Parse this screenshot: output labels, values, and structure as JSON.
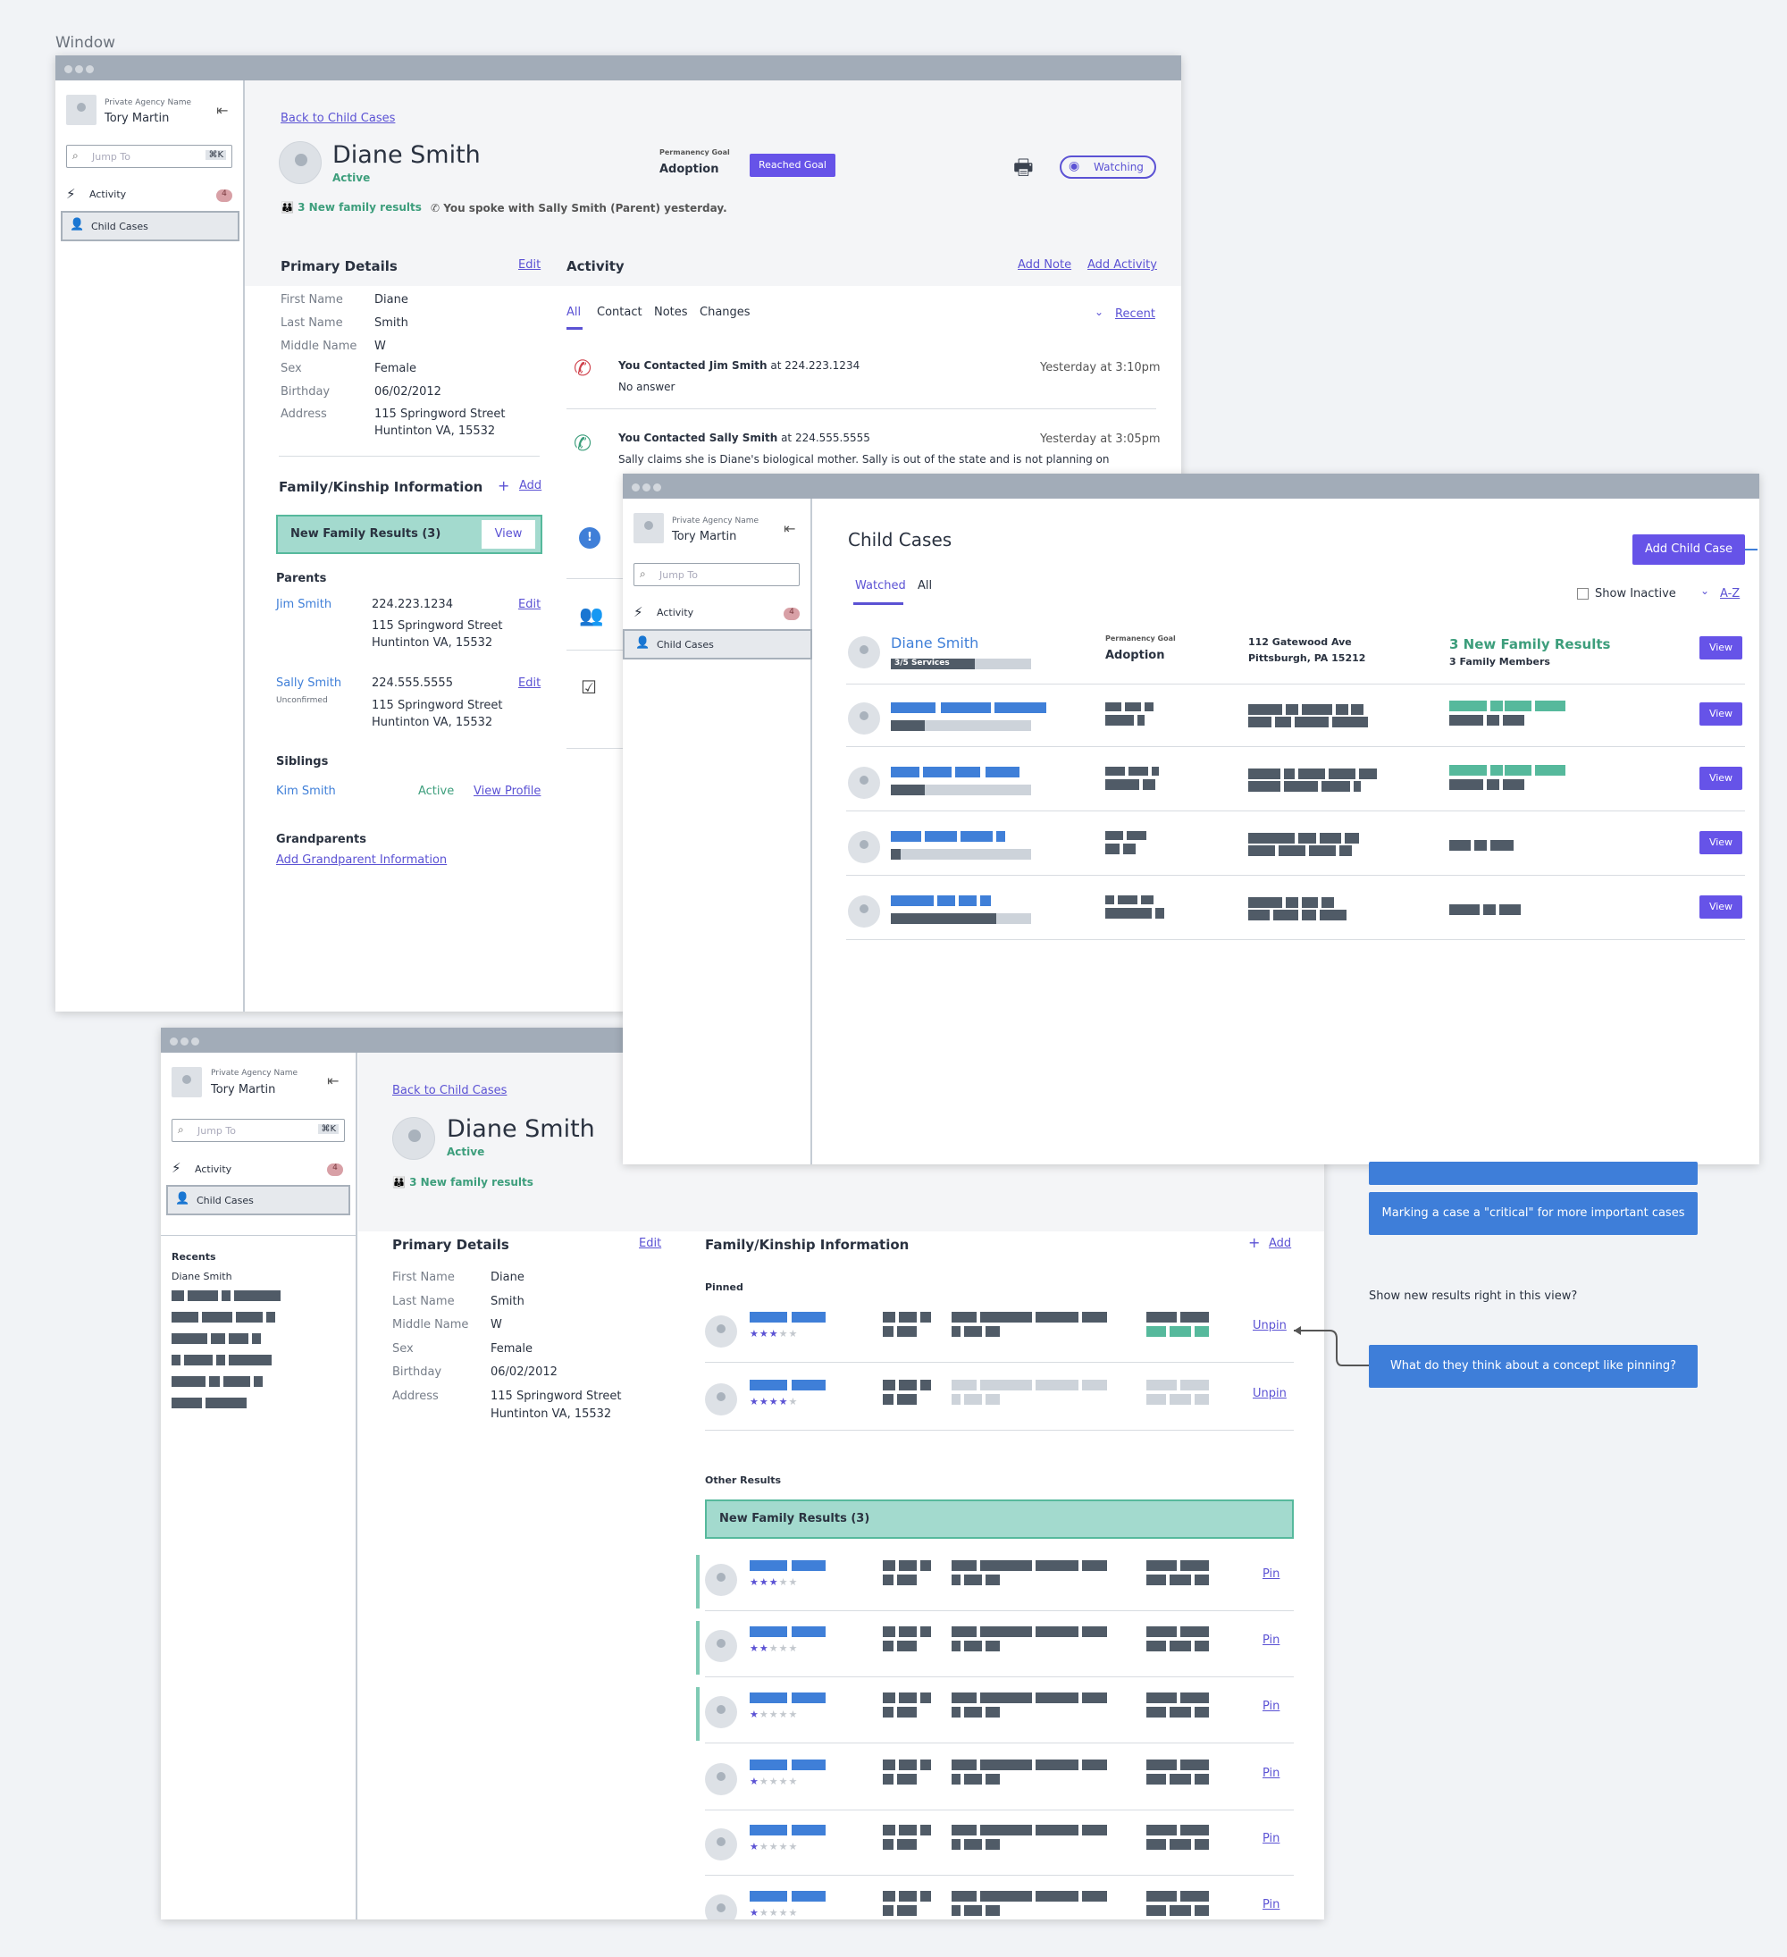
{
  "page_label": "Window",
  "sidebar": {
    "agency": "Private Agency Name",
    "user": "Tory Martin",
    "jump_placeholder": "Jump To",
    "jump_shortcut": "⌘K",
    "activity": "Activity",
    "activity_count": "4",
    "child_cases": "Child Cases",
    "recents_title": "Recents",
    "recent_1": "Diane Smith"
  },
  "case": {
    "back": "Back to Child Cases",
    "name": "Diane Smith",
    "status": "Active",
    "goal_label": "Permanency Goal",
    "goal": "Adoption",
    "reached": "Reached Goal",
    "watching": "Watching",
    "family_results": "3 New family results",
    "spoke": "You spoke with Sally Smith (Parent) yesterday."
  },
  "details": {
    "title": "Primary Details",
    "edit": "Edit",
    "l_first": "First Name",
    "v_first": "Diane",
    "l_last": "Last Name",
    "v_last": "Smith",
    "l_middle": "Middle Name",
    "v_middle": "W",
    "l_sex": "Sex",
    "v_sex": "Female",
    "l_birth": "Birthday",
    "v_birth": "06/02/2012",
    "l_addr": "Address",
    "v_addr1": "115 Springword Street",
    "v_addr2": "Huntinton VA, 15532"
  },
  "family": {
    "title": "Family/Kinship Information",
    "add": "Add",
    "new_results": "New Family Results (3)",
    "view": "View",
    "parents": "Parents",
    "p1_name": "Jim Smith",
    "p1_phone": "224.223.1234",
    "p1_addr1": "115 Springword Street",
    "p1_addr2": "Huntinton VA, 15532",
    "edit": "Edit",
    "p2_name": "Sally Smith",
    "p2_status": "Unconfirmed",
    "p2_phone": "224.555.5555",
    "p2_addr1": "115 Springword Street",
    "p2_addr2": "Huntinton VA, 15532",
    "siblings": "Siblings",
    "s1_name": "Kim Smith",
    "s1_status": "Active",
    "view_profile": "View Profile",
    "grandparents": "Grandparents",
    "add_gp": "Add Grandparent Information",
    "pinned": "Pinned",
    "other": "Other Results",
    "unpin": "Unpin",
    "pin": "Pin"
  },
  "activity": {
    "title": "Activity",
    "add_note": "Add Note",
    "add_activity": "Add Activity",
    "tab_all": "All",
    "tab_contact": "Contact",
    "tab_notes": "Notes",
    "tab_changes": "Changes",
    "sort": "Recent",
    "i1_title": "You Contacted Jim Smith",
    "i1_at": " at 224.223.1234",
    "i1_body": "No answer",
    "i1_time": "Yesterday at 3:10pm",
    "i2_title": "You Contacted Sally Smith",
    "i2_at": " at 224.555.5555",
    "i2_body": "Sally claims she is Diane's biological mother. Sally is out of the state and is not planning on",
    "i2_time": "Yesterday at 3:05pm"
  },
  "child_cases": {
    "title": "Child Cases",
    "add": "Add Child Case",
    "tab_watched": "Watched",
    "tab_all": "All",
    "show_inactive": "Show Inactive",
    "sort": "A-Z",
    "r1_name": "Diane Smith",
    "r1_services": "3/5 Services",
    "r1_goal_label": "Permanency Goal",
    "r1_goal": "Adoption",
    "r1_addr1": "112 Gatewood Ave",
    "r1_addr2": "Pittsburgh, PA 15212",
    "r1_results": "3 New Family Results",
    "r1_members": "3 Family Members",
    "view": "View"
  },
  "notes": {
    "n1": "Marking a case a \"critical\" for more important cases",
    "q1": "Show new results right in this view?",
    "n2": "What do they think about a concept like pinning?"
  },
  "colors": {
    "accent": "#6653e8",
    "link": "#5b52d4",
    "teal": "#3d9e7c",
    "blue": "#3e7ed9"
  }
}
